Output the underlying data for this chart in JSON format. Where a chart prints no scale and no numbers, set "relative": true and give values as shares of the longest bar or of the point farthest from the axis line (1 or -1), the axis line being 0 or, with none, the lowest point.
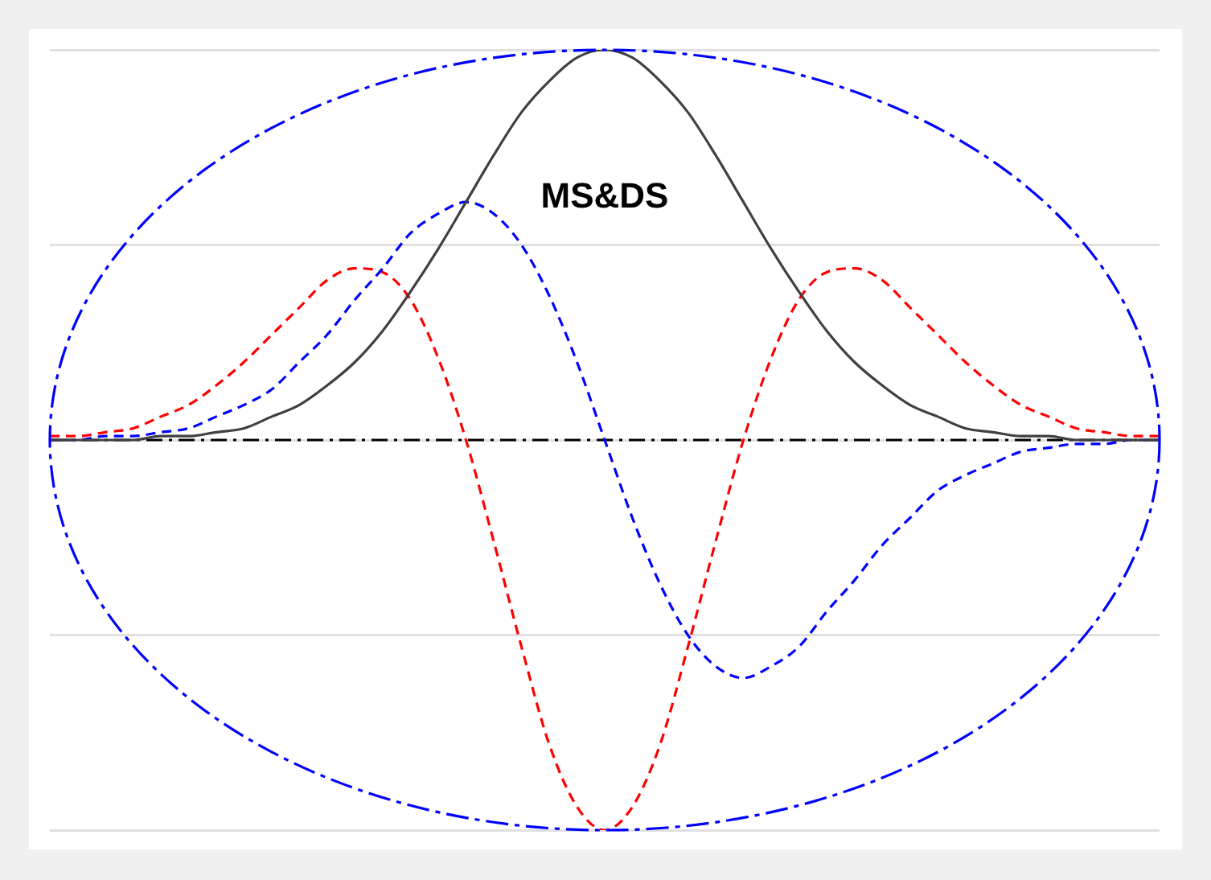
{
  "chart_data": {
    "type": "line",
    "relative": true,
    "grid": "y",
    "legend": false,
    "marker": "none",
    "annotations": [
      "MS&DS"
    ],
    "categories": [
      null,
      null,
      null,
      null,
      null,
      null,
      null,
      null,
      null,
      null,
      null,
      null,
      null,
      null,
      null,
      null,
      null,
      null,
      null,
      null,
      null,
      null,
      null,
      null,
      null,
      null,
      null,
      null,
      null,
      null,
      null,
      null,
      null,
      null,
      null,
      null,
      null,
      null,
      null,
      null,
      null
    ],
    "ref_lines": [
      {
        "axis": "y",
        "value": 0,
        "color": "#000000",
        "line_style": "dashed"
      }
    ],
    "series": [
      {
        "color": "#404040",
        "line_style": "solid",
        "values": [
          0,
          0,
          0,
          0,
          0.01,
          0.01,
          0.02,
          0.03,
          0.06,
          0.09,
          0.14,
          0.2,
          0.28,
          0.38,
          0.49,
          0.61,
          0.73,
          0.84,
          0.92,
          0.98,
          1.0,
          0.98,
          0.92,
          0.84,
          0.73,
          0.61,
          0.49,
          0.38,
          0.28,
          0.2,
          0.14,
          0.09,
          0.06,
          0.03,
          0.02,
          0.01,
          0.01,
          0,
          0,
          0,
          0
        ]
      },
      {
        "color": "#0000ff",
        "line_style": "dashed",
        "values": [
          0,
          0,
          0.01,
          0.01,
          0.02,
          0.03,
          0.06,
          0.09,
          0.13,
          0.2,
          0.27,
          0.36,
          0.44,
          0.53,
          0.58,
          0.61,
          0.58,
          0.5,
          0.37,
          0.2,
          0,
          -0.2,
          -0.37,
          -0.5,
          -0.58,
          -0.61,
          -0.58,
          -0.53,
          -0.44,
          -0.36,
          -0.27,
          -0.2,
          -0.13,
          -0.09,
          -0.06,
          -0.03,
          -0.02,
          -0.01,
          -0.01,
          0,
          0
        ]
      },
      {
        "color": "#ff0000",
        "line_style": "dashed",
        "values": [
          0.01,
          0.01,
          0.02,
          0.03,
          0.06,
          0.09,
          0.14,
          0.2,
          0.27,
          0.34,
          0.41,
          0.44,
          0.43,
          0.36,
          0.21,
          0,
          -0.26,
          -0.53,
          -0.78,
          -0.94,
          -1,
          -0.94,
          -0.78,
          -0.53,
          -0.26,
          0,
          0.21,
          0.36,
          0.43,
          0.44,
          0.41,
          0.34,
          0.27,
          0.2,
          0.14,
          0.09,
          0.06,
          0.03,
          0.02,
          0.01,
          0.01
        ]
      }
    ]
  }
}
